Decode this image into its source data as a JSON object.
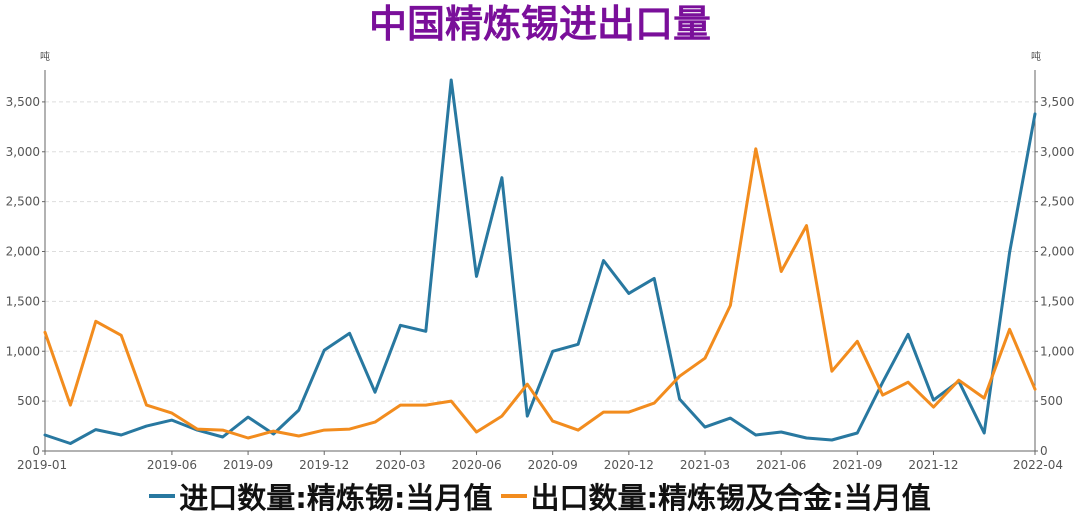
{
  "chart_data": {
    "type": "line",
    "title": "中国精炼锡进出口量",
    "y_unit_left": "吨",
    "y_unit_right": "吨",
    "ylim": [
      0,
      3900
    ],
    "yticks": [
      0,
      500,
      1000,
      1500,
      2000,
      2500,
      3000,
      3500
    ],
    "ytick_labels": [
      "0",
      "500",
      "1,000",
      "1,500",
      "2,000",
      "2,500",
      "3,000",
      "3,500"
    ],
    "xtick_labels": [
      "2019-01",
      "2019-06",
      "2019-09",
      "2019-12",
      "2020-03",
      "2020-06",
      "2020-09",
      "2020-12",
      "2021-03",
      "2021-06",
      "2021-09",
      "2021-12",
      "2022-04"
    ],
    "xtick_indices": [
      0,
      5,
      8,
      11,
      14,
      17,
      20,
      23,
      26,
      29,
      32,
      35,
      39
    ],
    "x": [
      "2019-01",
      "2019-02",
      "2019-03",
      "2019-04",
      "2019-05",
      "2019-06",
      "2019-07",
      "2019-08",
      "2019-09",
      "2019-10",
      "2019-11",
      "2019-12",
      "2020-01",
      "2020-02",
      "2020-03",
      "2020-04",
      "2020-05",
      "2020-06",
      "2020-07",
      "2020-08",
      "2020-09",
      "2020-10",
      "2020-11",
      "2020-12",
      "2021-01",
      "2021-02",
      "2021-03",
      "2021-04",
      "2021-05",
      "2021-06",
      "2021-07",
      "2021-08",
      "2021-09",
      "2021-10",
      "2021-11",
      "2021-12",
      "2022-01",
      "2022-02",
      "2022-03",
      "2022-04"
    ],
    "series": [
      {
        "name": "进口数量:精炼锡:当月值",
        "color": "#2878a0",
        "values": [
          160,
          75,
          215,
          160,
          250,
          310,
          210,
          140,
          340,
          170,
          410,
          1010,
          1180,
          590,
          1260,
          1200,
          3720,
          1750,
          2740,
          350,
          1000,
          1070,
          1910,
          1580,
          1730,
          520,
          240,
          330,
          160,
          190,
          130,
          110,
          180,
          690,
          1170,
          510,
          700,
          180,
          1990,
          3380
        ]
      },
      {
        "name": "出口数量:精炼锡及合金:当月值",
        "color": "#f28c1e",
        "values": [
          1190,
          460,
          1300,
          1160,
          460,
          380,
          220,
          210,
          130,
          200,
          150,
          210,
          220,
          290,
          460,
          460,
          500,
          190,
          350,
          670,
          300,
          210,
          390,
          390,
          480,
          750,
          930,
          1460,
          3030,
          1800,
          2260,
          800,
          1100,
          560,
          690,
          440,
          710,
          530,
          1220,
          620
        ]
      }
    ],
    "grid": true,
    "legend_position": "bottom"
  }
}
